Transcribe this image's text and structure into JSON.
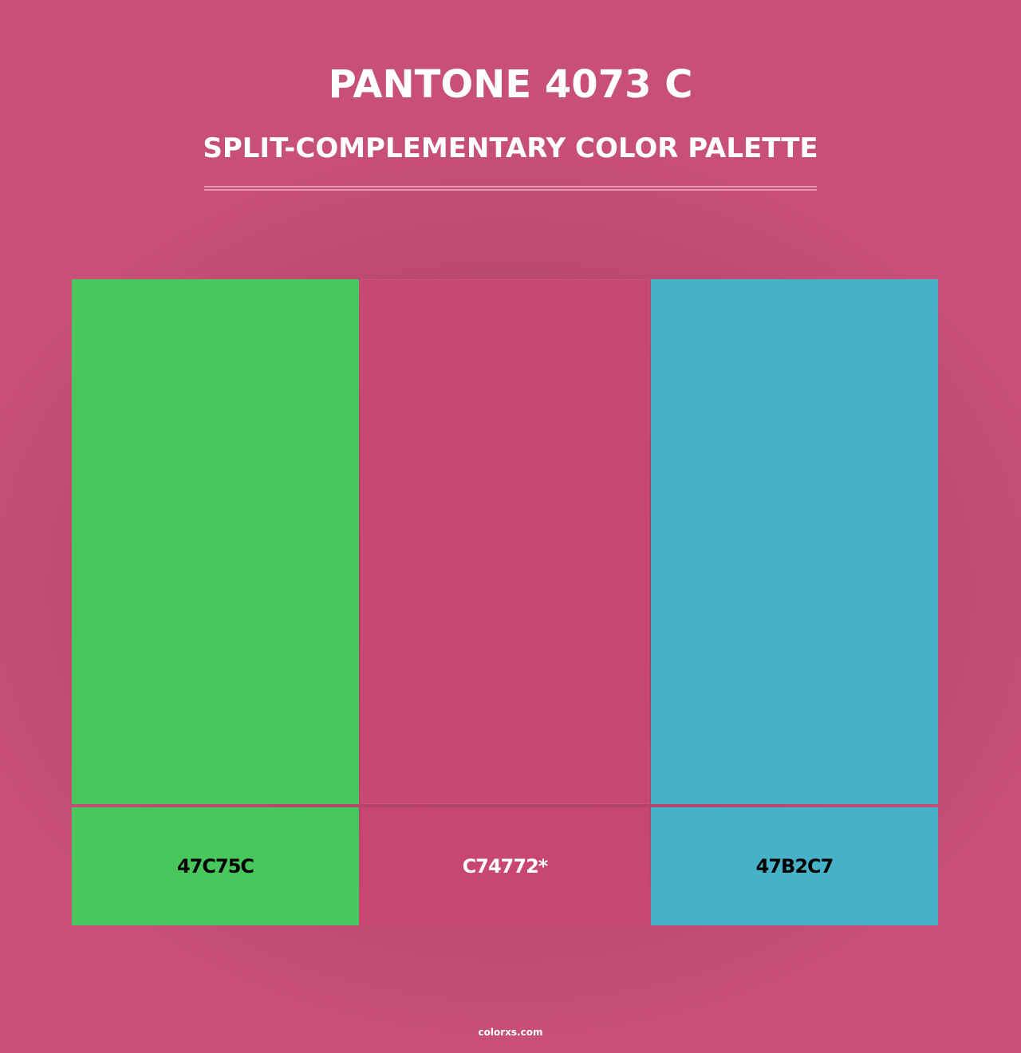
{
  "header": {
    "title": "PANTONE 4073 C",
    "subtitle": "SPLIT-COMPLEMENTARY COLOR PALETTE"
  },
  "palette": [
    {
      "hex": "47C75C",
      "color": "#47C75C",
      "text_color": "#000000"
    },
    {
      "hex": "C74772*",
      "color": "#C74772",
      "text_color": "#FFFFFF"
    },
    {
      "hex": "47B2C7",
      "color": "#47B2C7",
      "text_color": "#000000"
    }
  ],
  "background_color": "#C74F79",
  "footer": {
    "brand": "colorxs.com"
  }
}
